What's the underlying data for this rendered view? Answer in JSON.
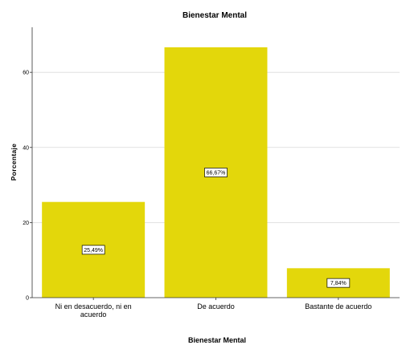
{
  "chart_data": {
    "type": "bar",
    "title": "Bienestar Mental",
    "xlabel": "Bienestar Mental",
    "ylabel": "Porcentaje",
    "categories": [
      "Ni en desacuerdo, ni en acuerdo",
      "De acuerdo",
      "Bastante de acuerdo"
    ],
    "category_lines": [
      [
        "Ni en desacuerdo, ni en",
        "acuerdo"
      ],
      [
        "De acuerdo"
      ],
      [
        "Bastante de acuerdo"
      ]
    ],
    "values": [
      25.49,
      66.67,
      7.84
    ],
    "data_labels": [
      "25,49%",
      "66,67%",
      "7,84%"
    ],
    "ylim": [
      0,
      72
    ],
    "yticks": [
      0,
      20,
      40,
      60
    ],
    "grid": true,
    "bar_color": "#e3d70b",
    "legend": "none"
  }
}
